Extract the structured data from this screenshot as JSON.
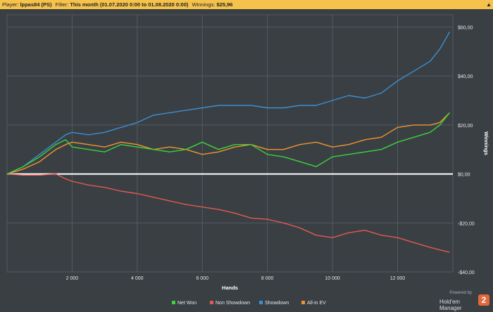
{
  "header": {
    "player_key": "Player:",
    "player_val": "lppas84 (PS)",
    "filter_key": "Filter:",
    "filter_val": "This month (01.07.2020 0:00 to 01.08.2020 0:00)",
    "winnings_key": "Winnings:",
    "winnings_val": "$25,96",
    "collapse_icon": "chevron-up-icon"
  },
  "branding": {
    "powered": "Powered by",
    "name": "Hold'em Manager",
    "logo_text": "2"
  },
  "colors": {
    "background": "#3a3f44",
    "grid": "#535a61",
    "zero_line": "#ffffff",
    "net_won": "#3ad43a",
    "non_showdown": "#e05a52",
    "showdown": "#3c8fd1",
    "allin_ev": "#f0952e"
  },
  "chart_data": {
    "type": "line",
    "title": "",
    "xlabel": "Hands",
    "ylabel": "Winnings",
    "xlim": [
      0,
      13700
    ],
    "ylim": [
      -40,
      65
    ],
    "x_ticks": [
      2000,
      4000,
      6000,
      8000,
      10000,
      12000
    ],
    "x_tick_labels": [
      "2 000",
      "4 000",
      "6 000",
      "8 000",
      "10 000",
      "12 000"
    ],
    "y_ticks": [
      60,
      40,
      20,
      0,
      -20,
      -40
    ],
    "y_tick_labels": [
      "$60,00",
      "$40,00",
      "$20,00",
      "$0,00",
      "-$20,00",
      "-$40,00"
    ],
    "grid": true,
    "legend_position": "bottom",
    "x": [
      0,
      500,
      1000,
      1500,
      1800,
      2000,
      2500,
      3000,
      3500,
      4000,
      4500,
      5000,
      5500,
      6000,
      6500,
      7000,
      7500,
      8000,
      8500,
      9000,
      9500,
      10000,
      10500,
      11000,
      11500,
      12000,
      12500,
      13000,
      13300,
      13600
    ],
    "series": [
      {
        "name": "Net Won",
        "color": "#3ad43a",
        "values": [
          0,
          3,
          7,
          12,
          14,
          11,
          10,
          9,
          12,
          11,
          10,
          9,
          10,
          13,
          10,
          12,
          12,
          8,
          7,
          5,
          3,
          7,
          8,
          9,
          10,
          13,
          15,
          17,
          20,
          25
        ]
      },
      {
        "name": "Non Showdown",
        "color": "#e05a52",
        "values": [
          0,
          -0.5,
          -0.5,
          0,
          -2,
          -3,
          -4.5,
          -5.5,
          -7,
          -8,
          -9.5,
          -11,
          -12.5,
          -13.5,
          -14.5,
          -16,
          -18,
          -18.5,
          -20,
          -22,
          -25,
          -26,
          -24,
          -23,
          -25,
          -26,
          -28,
          -30,
          -31,
          -32
        ]
      },
      {
        "name": "Showdown",
        "color": "#3c8fd1",
        "values": [
          0,
          3,
          8,
          13,
          16,
          17,
          16,
          17,
          19,
          21,
          24,
          25,
          26,
          27,
          28,
          28,
          28,
          27,
          27,
          28,
          28,
          30,
          32,
          31,
          33,
          38,
          42,
          46,
          51,
          58
        ]
      },
      {
        "name": "All-in EV",
        "color": "#f0952e",
        "values": [
          0,
          2,
          5,
          10,
          12,
          13,
          12,
          11,
          13,
          12,
          10,
          11,
          10,
          8,
          9,
          11,
          12,
          10,
          10,
          12,
          13,
          11,
          12,
          14,
          15,
          19,
          20,
          20,
          21,
          25
        ]
      }
    ]
  }
}
